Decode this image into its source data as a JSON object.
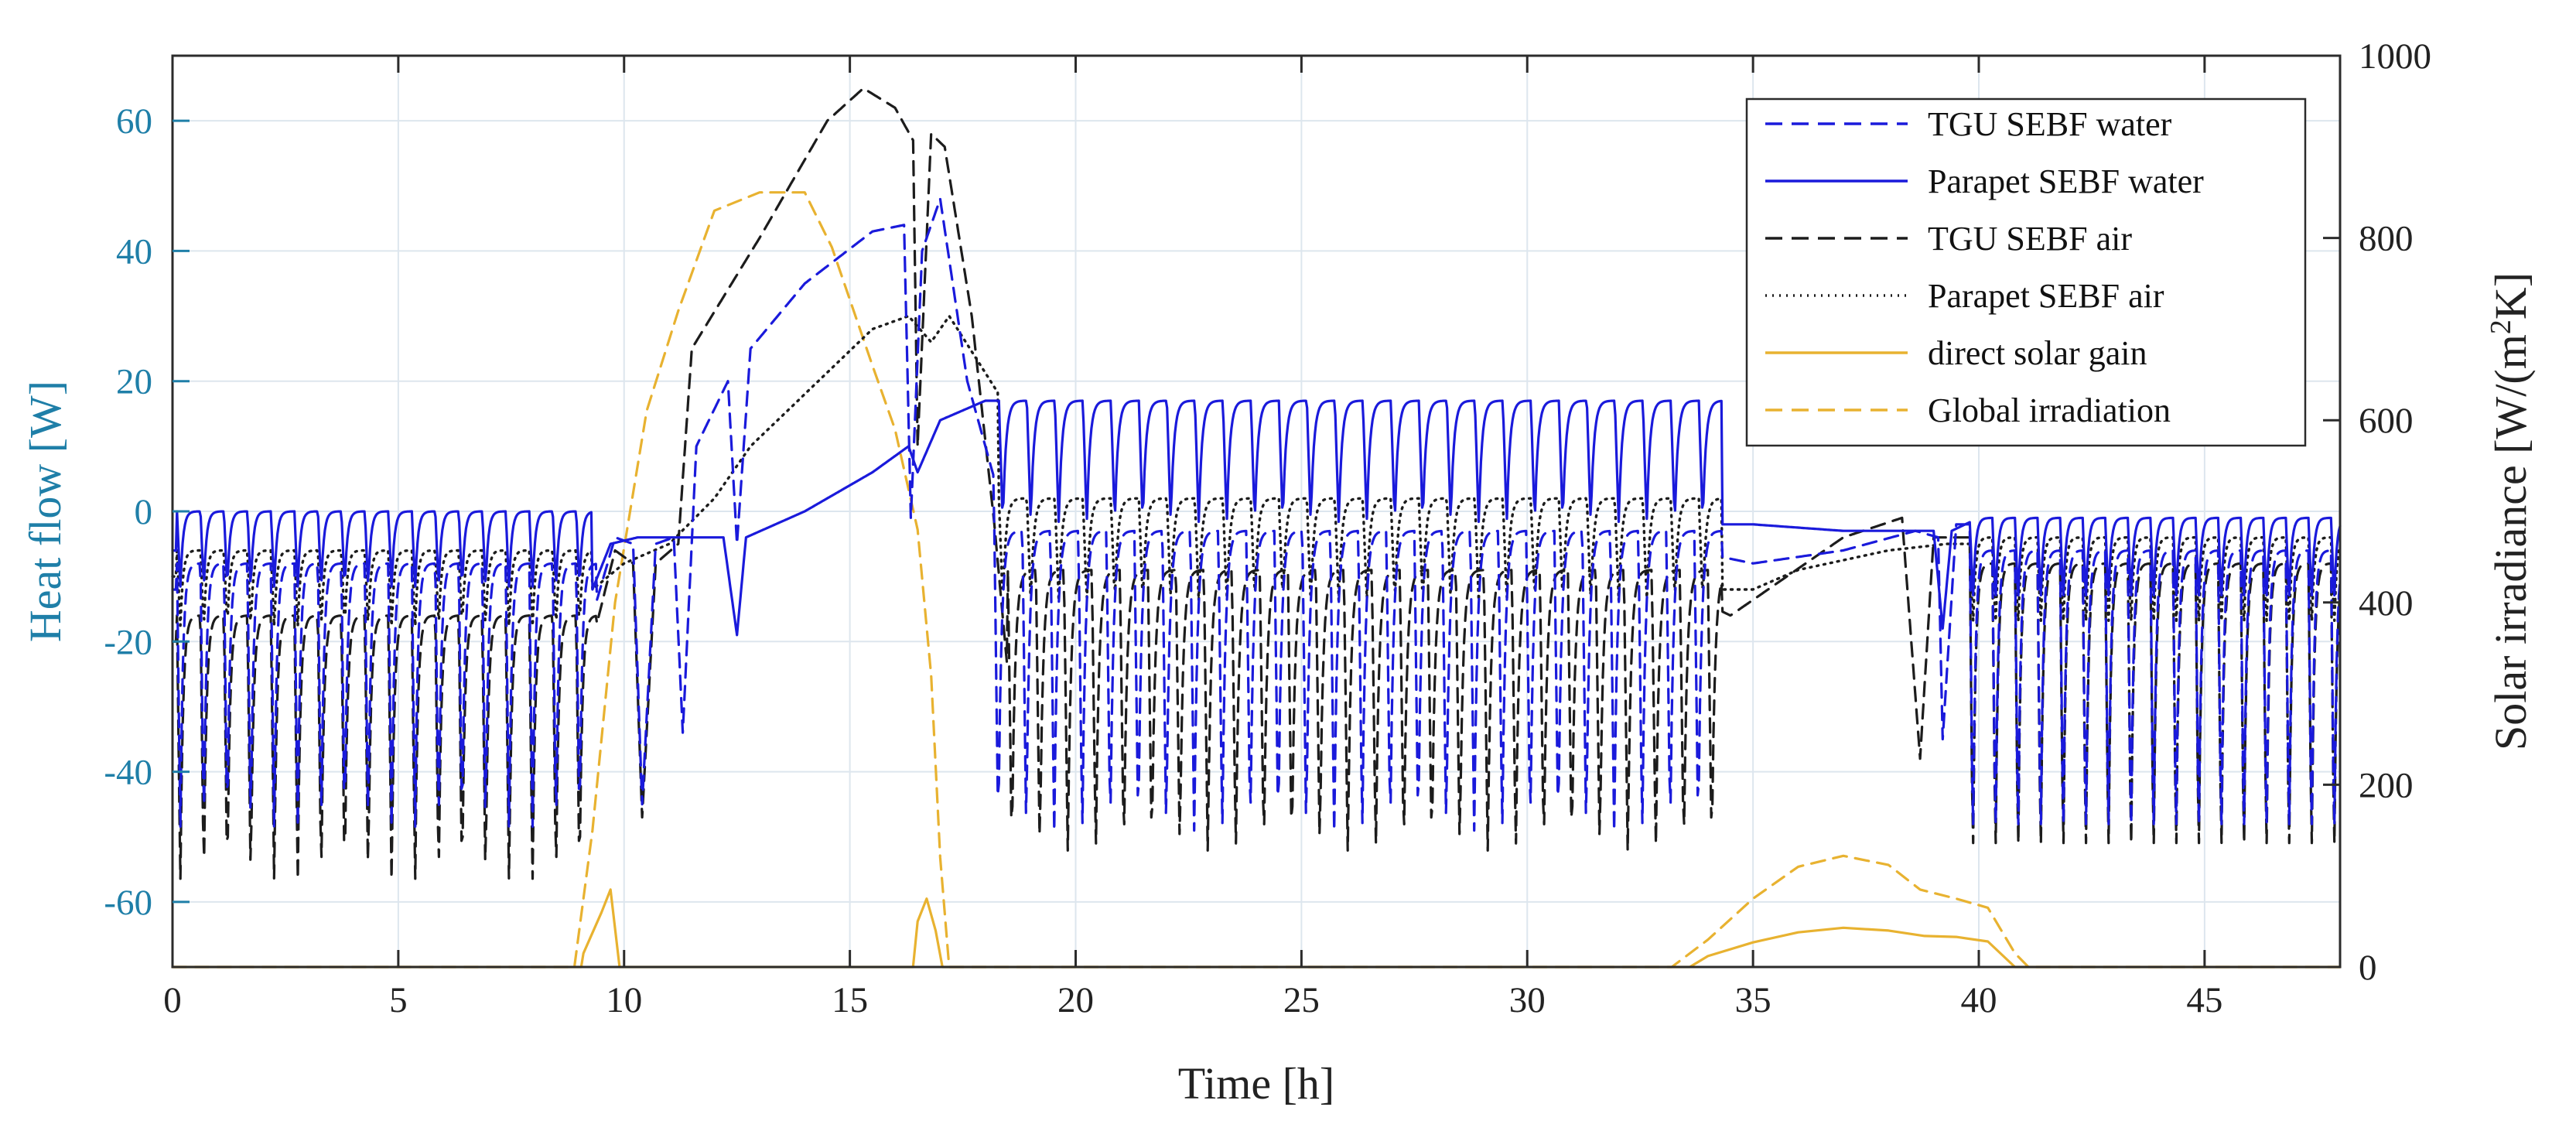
{
  "chart_data": {
    "type": "line",
    "xlabel": "Time [h]",
    "ylabel_left": "Heat flow [W]",
    "ylabel_right_prefix": "Solar irradiance [W/(m",
    "ylabel_right_sup": "2",
    "ylabel_right_suffix": "K]",
    "xlim": [
      0,
      48
    ],
    "ylim_left": [
      -70,
      70
    ],
    "ylim_right": [
      0,
      1000
    ],
    "xticks": [
      0,
      5,
      10,
      15,
      20,
      25,
      30,
      35,
      40,
      45
    ],
    "yticks_left": [
      -60,
      -40,
      -20,
      0,
      20,
      40,
      60
    ],
    "yticks_right": [
      0,
      200,
      400,
      600,
      800,
      1000
    ],
    "grid": true,
    "legend_position": "top-right",
    "colors": {
      "blue": "#1a1adb",
      "black": "#1c1c1c",
      "gold": "#e8b230",
      "left_axis": "#1f7fa8"
    },
    "series": [
      {
        "name": "TGU SEBF water",
        "style": "dashed",
        "color": "#1a1adb",
        "axis": "left",
        "oscillating_segments": [
          {
            "x_start": 0.1,
            "x_end": 9.4,
            "period": 0.52,
            "high": -8,
            "low": -50
          },
          {
            "x_start": 18.2,
            "x_end": 34.3,
            "period": 0.62,
            "high": -3,
            "low": -50
          },
          {
            "x_start": 39.8,
            "x_end": 48,
            "period": 0.5,
            "high": -6,
            "low": -52
          }
        ],
        "envelope": [
          [
            0,
            -12
          ],
          [
            9.3,
            -16
          ],
          [
            9.8,
            -4
          ],
          [
            10.2,
            -5
          ],
          [
            10.4,
            -45
          ],
          [
            10.7,
            -5
          ],
          [
            11.1,
            -4
          ],
          [
            11.3,
            -34
          ],
          [
            11.6,
            10
          ],
          [
            12.3,
            20
          ],
          [
            12.5,
            -5
          ],
          [
            12.8,
            25
          ],
          [
            14,
            35
          ],
          [
            15.5,
            43
          ],
          [
            16.2,
            44
          ],
          [
            16.35,
            -1
          ],
          [
            16.6,
            40
          ],
          [
            17,
            48
          ],
          [
            17.6,
            20
          ],
          [
            18.2,
            5
          ],
          [
            18.3,
            -17
          ],
          [
            18.6,
            5
          ],
          [
            25,
            -2
          ],
          [
            30,
            -5
          ],
          [
            34.3,
            -7
          ],
          [
            35,
            -8
          ],
          [
            37,
            -6
          ],
          [
            38.6,
            -3
          ],
          [
            39.1,
            -4
          ],
          [
            39.2,
            -35
          ],
          [
            39.5,
            -2
          ],
          [
            40,
            -2
          ],
          [
            48,
            -10
          ]
        ]
      },
      {
        "name": "Parapet SEBF water",
        "style": "solid",
        "color": "#1a1adb",
        "axis": "left",
        "oscillating_segments": [
          {
            "x_start": 0.1,
            "x_end": 9.3,
            "period": 0.52,
            "high": 0,
            "low": -12
          },
          {
            "x_start": 18.3,
            "x_end": 34.3,
            "period": 0.62,
            "high": 17,
            "low": -2
          },
          {
            "x_start": 39.8,
            "x_end": 48,
            "period": 0.5,
            "high": -1,
            "low": -14
          }
        ],
        "envelope": [
          [
            0,
            -6
          ],
          [
            9.3,
            -12
          ],
          [
            9.7,
            -5
          ],
          [
            10.3,
            -4
          ],
          [
            12.2,
            -4
          ],
          [
            12.5,
            -19
          ],
          [
            12.7,
            -4
          ],
          [
            14,
            0
          ],
          [
            15.5,
            6
          ],
          [
            16.3,
            10
          ],
          [
            16.5,
            6
          ],
          [
            17,
            14
          ],
          [
            18,
            17
          ],
          [
            18.3,
            17
          ],
          [
            25,
            8
          ],
          [
            30,
            3
          ],
          [
            34.3,
            -2
          ],
          [
            35,
            -2
          ],
          [
            37,
            -3
          ],
          [
            39,
            -3
          ],
          [
            39.2,
            -18
          ],
          [
            39.4,
            -3
          ],
          [
            40,
            -1
          ],
          [
            48,
            -4
          ]
        ]
      },
      {
        "name": "TGU SEBF air",
        "style": "dashed",
        "color": "#1c1c1c",
        "axis": "left",
        "oscillating_segments": [
          {
            "x_start": 0.1,
            "x_end": 9.4,
            "period": 0.52,
            "high": -16,
            "low": -58
          },
          {
            "x_start": 18.5,
            "x_end": 34.3,
            "period": 0.62,
            "high": -9,
            "low": -53
          },
          {
            "x_start": 39.8,
            "x_end": 48,
            "period": 0.5,
            "high": -8,
            "low": -55
          }
        ],
        "envelope": [
          [
            0,
            -20
          ],
          [
            9.3,
            -20
          ],
          [
            9.8,
            -6
          ],
          [
            10.2,
            -8
          ],
          [
            10.4,
            -47
          ],
          [
            10.7,
            -8
          ],
          [
            11.2,
            -5
          ],
          [
            11.5,
            25
          ],
          [
            13,
            42
          ],
          [
            14.5,
            60
          ],
          [
            15.3,
            65
          ],
          [
            16,
            62
          ],
          [
            16.4,
            57
          ],
          [
            16.5,
            10
          ],
          [
            16.8,
            58
          ],
          [
            17.1,
            56
          ],
          [
            17.7,
            30
          ],
          [
            18.2,
            -2
          ],
          [
            18.5,
            -25
          ],
          [
            25,
            -12
          ],
          [
            30,
            -14
          ],
          [
            34.2,
            -15
          ],
          [
            34.5,
            -16
          ],
          [
            37,
            -4
          ],
          [
            38.3,
            -1
          ],
          [
            38.7,
            -38
          ],
          [
            39,
            -4
          ],
          [
            40,
            -4
          ],
          [
            48,
            -14
          ]
        ]
      },
      {
        "name": "Parapet SEBF air",
        "style": "dotted",
        "color": "#1c1c1c",
        "axis": "left",
        "oscillating_segments": [
          {
            "x_start": 0.1,
            "x_end": 9.3,
            "period": 0.52,
            "high": -6,
            "low": -18
          },
          {
            "x_start": 18.3,
            "x_end": 34.3,
            "period": 0.62,
            "high": 2,
            "low": -14
          },
          {
            "x_start": 39.8,
            "x_end": 48,
            "period": 0.5,
            "high": -4,
            "low": -18
          }
        ],
        "envelope": [
          [
            0,
            -10
          ],
          [
            9.3,
            -12
          ],
          [
            10,
            -8
          ],
          [
            11,
            -5
          ],
          [
            12,
            2
          ],
          [
            12.8,
            10
          ],
          [
            14,
            18
          ],
          [
            15.5,
            28
          ],
          [
            16.3,
            30
          ],
          [
            16.8,
            26
          ],
          [
            17.2,
            30
          ],
          [
            18.3,
            18
          ],
          [
            25,
            -5
          ],
          [
            30,
            -10
          ],
          [
            34.3,
            -12
          ],
          [
            35,
            -12
          ],
          [
            36,
            -9
          ],
          [
            38,
            -6
          ],
          [
            39.3,
            -5
          ],
          [
            40,
            -5
          ],
          [
            48,
            -12
          ]
        ]
      },
      {
        "name": "direct solar gain",
        "style": "solid",
        "color": "#e8b230",
        "axis": "right",
        "points": [
          [
            0,
            0
          ],
          [
            9.05,
            0
          ],
          [
            9.1,
            15
          ],
          [
            9.5,
            60
          ],
          [
            9.7,
            85
          ],
          [
            9.9,
            0
          ],
          [
            16.4,
            0
          ],
          [
            16.5,
            50
          ],
          [
            16.7,
            75
          ],
          [
            16.9,
            40
          ],
          [
            17.05,
            0
          ],
          [
            33.6,
            0
          ],
          [
            34,
            12
          ],
          [
            35,
            27
          ],
          [
            36,
            38
          ],
          [
            37,
            43
          ],
          [
            38,
            40
          ],
          [
            38.8,
            34
          ],
          [
            39.5,
            33
          ],
          [
            40.2,
            28
          ],
          [
            40.8,
            0
          ],
          [
            48,
            0
          ]
        ]
      },
      {
        "name": "Global irradiation",
        "style": "dashed",
        "color": "#e8b230",
        "axis": "right",
        "points": [
          [
            0,
            0
          ],
          [
            8.9,
            0
          ],
          [
            9.3,
            150
          ],
          [
            9.8,
            400
          ],
          [
            10.5,
            610
          ],
          [
            11.2,
            720
          ],
          [
            12,
            830
          ],
          [
            13,
            850
          ],
          [
            14,
            850
          ],
          [
            14.6,
            790
          ],
          [
            15.5,
            660
          ],
          [
            16,
            590
          ],
          [
            16.5,
            480
          ],
          [
            16.8,
            320
          ],
          [
            17.0,
            120
          ],
          [
            17.2,
            0
          ],
          [
            33.2,
            0
          ],
          [
            34,
            30
          ],
          [
            35,
            75
          ],
          [
            36,
            110
          ],
          [
            37,
            122
          ],
          [
            38,
            112
          ],
          [
            38.7,
            85
          ],
          [
            39.5,
            75
          ],
          [
            40.2,
            65
          ],
          [
            40.8,
            15
          ],
          [
            41.1,
            0
          ],
          [
            48,
            0
          ]
        ]
      }
    ]
  }
}
